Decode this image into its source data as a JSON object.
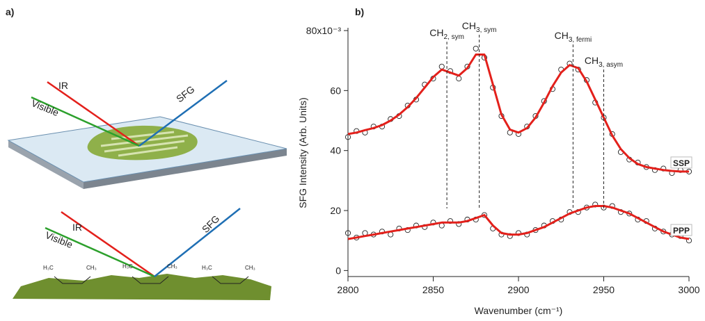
{
  "panels": [
    "a)",
    "b)"
  ],
  "diagram": {
    "top": {
      "ir": "IR",
      "visible": "Visible",
      "sfg": "SFG"
    },
    "bottom": {
      "ir": "IR",
      "visible": "Visible",
      "sfg": "SFG",
      "molecules": [
        "H₃C",
        "CH₃",
        "H₃C",
        "CH₃",
        "H₃C",
        "CH₃"
      ]
    }
  },
  "chart_data": {
    "type": "line",
    "x_label": "Wavenumber (cm⁻¹)",
    "y_label": "SFG Intensity (Arb. Units)",
    "xlim": [
      2800,
      3000
    ],
    "xticks": [
      2800,
      2850,
      2900,
      2950,
      3000
    ],
    "ylim": [
      -2,
      80
    ],
    "yticks": [
      0,
      20,
      40,
      60,
      {
        "value": 80,
        "label": "80x10⁻³"
      }
    ],
    "point_color": "#222222",
    "x": [
      2800,
      2805,
      2810,
      2815,
      2820,
      2825,
      2830,
      2835,
      2840,
      2845,
      2850,
      2855,
      2860,
      2865,
      2870,
      2875,
      2880,
      2885,
      2890,
      2895,
      2900,
      2905,
      2910,
      2915,
      2920,
      2925,
      2930,
      2935,
      2940,
      2945,
      2950,
      2955,
      2960,
      2965,
      2970,
      2975,
      2980,
      2985,
      2990,
      2995,
      3000
    ],
    "series": [
      {
        "name": "SSP",
        "color": "#e3201b",
        "values": [
          45.5,
          46,
          46.8,
          47.5,
          48.5,
          50,
          52,
          54.5,
          57.5,
          61,
          64.5,
          67,
          66,
          65,
          67.5,
          72,
          72,
          62,
          52,
          47,
          46,
          47.5,
          51,
          56,
          61.5,
          66,
          68.5,
          67.5,
          63,
          57,
          51,
          45,
          40.5,
          37.5,
          35.5,
          34.5,
          34,
          33.5,
          33.2,
          33,
          33
        ],
        "points": [
          44.5,
          46.5,
          46,
          48,
          48,
          50.5,
          51.5,
          55,
          57,
          62,
          64,
          68,
          66.5,
          64,
          68,
          74,
          71,
          61,
          51.5,
          46,
          45.5,
          48,
          51.5,
          56.5,
          60.5,
          67,
          69,
          67,
          63.5,
          56,
          51,
          45.5,
          39.5,
          37,
          36,
          34.5,
          33.5,
          34,
          32.5,
          33.5,
          33
        ]
      },
      {
        "name": "PPP",
        "color": "#e3201b",
        "values": [
          10.5,
          11,
          11.5,
          12,
          12.5,
          13,
          13.5,
          14,
          14.5,
          15,
          15.5,
          16,
          16,
          16,
          16.5,
          17.5,
          18.5,
          15,
          12.5,
          12,
          12,
          12.5,
          13.5,
          14.5,
          16,
          17.5,
          19,
          20,
          21,
          21.5,
          21.5,
          21,
          20,
          19,
          17.5,
          16,
          14.5,
          13,
          12,
          11,
          10.5
        ],
        "points": [
          12.5,
          11,
          12.5,
          12,
          13,
          12,
          14,
          13.5,
          15,
          14.5,
          16,
          15,
          16.5,
          15.5,
          17,
          17,
          18.5,
          14,
          12,
          11.5,
          12.5,
          12,
          13.5,
          15,
          16.5,
          17,
          19.5,
          19.5,
          21,
          22,
          21,
          21.5,
          19.5,
          19,
          17,
          16.5,
          14,
          13,
          12,
          11.5,
          10
        ]
      }
    ],
    "annotations": [
      {
        "text": "CH",
        "sub": "2, sym",
        "x": 2858
      },
      {
        "text": "CH",
        "sub": "3, sym",
        "x": 2877
      },
      {
        "text": "CH",
        "sub": "3, fermi",
        "x": 2932
      },
      {
        "text": "CH",
        "sub": "3, asym",
        "x": 2950
      }
    ]
  }
}
